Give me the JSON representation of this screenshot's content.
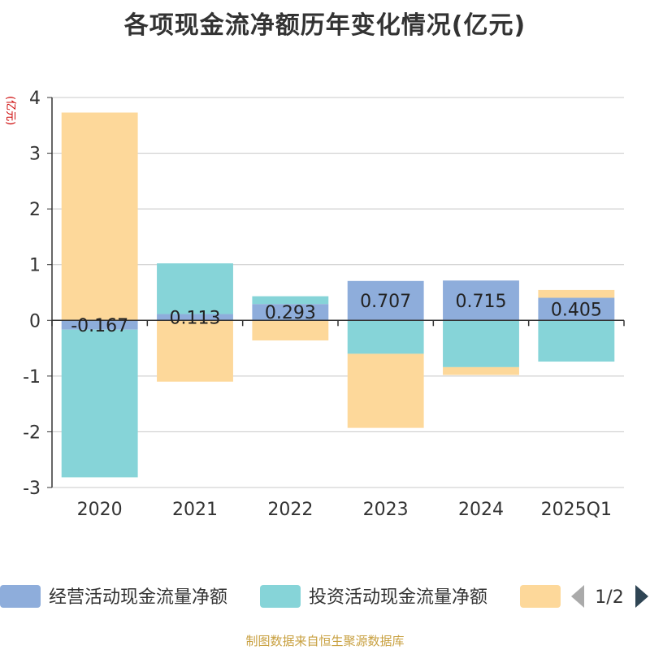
{
  "chart_data": {
    "type": "bar",
    "stacked": true,
    "title": "各项现金流净额历年变化情况(亿元)",
    "ylabel": "(亿元)",
    "xlabel": "",
    "categories": [
      "2020",
      "2021",
      "2022",
      "2023",
      "2024",
      "2025Q1"
    ],
    "ylim": [
      -3,
      4
    ],
    "yticks": [
      4,
      3,
      2,
      1,
      0,
      -1,
      -2,
      -3
    ],
    "series": [
      {
        "name": "经营活动现金流量净额",
        "color": "#8eaddb",
        "values": [
          -0.167,
          0.113,
          0.293,
          0.707,
          0.715,
          0.405
        ],
        "labels": [
          "-0.167",
          "0.113",
          "0.293",
          "0.707",
          "0.715",
          "0.405"
        ]
      },
      {
        "name": "投资活动现金流量净额",
        "color": "#86d4d8",
        "values": [
          -2.65,
          0.91,
          0.14,
          -0.6,
          -0.84,
          -0.74
        ]
      },
      {
        "name": "",
        "color": "#fdd89a",
        "values": [
          3.73,
          -1.1,
          -0.36,
          -1.33,
          -0.14,
          0.14
        ]
      }
    ],
    "legend": {
      "position": "bottom",
      "page": "1/2"
    },
    "source": "制图数据来自恒生聚源数据库"
  }
}
